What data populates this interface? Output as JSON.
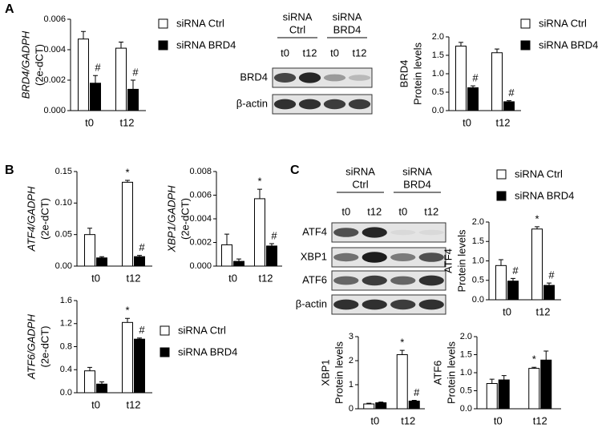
{
  "panel_labels": [
    "A",
    "B",
    "C"
  ],
  "blots": [
    {
      "groups": [
        [
          "siRNA",
          "Ctrl"
        ],
        [
          "siRNA",
          "BRD4"
        ]
      ],
      "lanes": [
        "t0",
        "t12",
        "t0",
        "t12"
      ],
      "rows": [
        "BRD4",
        "β-actin"
      ]
    },
    {
      "groups": [
        [
          "siRNA",
          "Ctrl"
        ],
        [
          "siRNA",
          "BRD4"
        ]
      ],
      "lanes": [
        "t0",
        "t12",
        "t0",
        "t12"
      ],
      "rows": [
        "ATF4",
        "XBP1",
        "ATF6",
        "β-actin"
      ]
    }
  ],
  "chart_data": [
    {
      "type": "bar",
      "ylabel": [
        "BRD4/GADPH",
        "(2e-dCT)"
      ],
      "ylabel_italic": true,
      "categories": [
        "t0",
        "t12"
      ],
      "ylim": [
        0,
        0.006
      ],
      "yticks": [
        {
          "value": 0,
          "label": "0.000"
        },
        {
          "value": 0.002,
          "label": "0.002"
        },
        {
          "value": 0.004,
          "label": "0.004"
        },
        {
          "value": 0.006,
          "label": "0.006"
        }
      ],
      "legend": true,
      "series": [
        {
          "name": "siRNA Ctrl",
          "color": "#ffffff",
          "values": [
            0.0047,
            0.0041
          ],
          "errors": [
            0.0005,
            0.0004
          ],
          "significance": [
            null,
            null
          ]
        },
        {
          "name": "siRNA BRD4",
          "color": "#000000",
          "values": [
            0.0018,
            0.0014
          ],
          "errors": [
            0.0005,
            0.0006
          ],
          "significance": [
            "#",
            "#"
          ]
        }
      ]
    },
    {
      "type": "bar",
      "ylabel": [
        "BRD4",
        "Protein levels"
      ],
      "ylabel_italic": false,
      "categories": [
        "t0",
        "t12"
      ],
      "ylim": [
        0,
        2
      ],
      "yticks": [
        {
          "value": 0,
          "label": "0.0"
        },
        {
          "value": 0.5,
          "label": "0.5"
        },
        {
          "value": 1,
          "label": "1.0"
        },
        {
          "value": 1.5,
          "label": "1.5"
        },
        {
          "value": 2,
          "label": "2.0"
        }
      ],
      "legend": true,
      "series": [
        {
          "name": "siRNA Ctrl",
          "color": "#ffffff",
          "values": [
            1.75,
            1.57
          ],
          "errors": [
            0.1,
            0.1
          ],
          "significance": [
            null,
            null
          ]
        },
        {
          "name": "siRNA BRD4",
          "color": "#000000",
          "values": [
            0.62,
            0.24
          ],
          "errors": [
            0.05,
            0.03
          ],
          "significance": [
            "#",
            "#"
          ]
        }
      ]
    },
    {
      "type": "bar",
      "ylabel": [
        "ATF4/GADPH",
        "(2e-dCT)"
      ],
      "ylabel_italic": true,
      "categories": [
        "t0",
        "t12"
      ],
      "ylim": [
        0,
        0.15
      ],
      "yticks": [
        {
          "value": 0,
          "label": "0.00"
        },
        {
          "value": 0.05,
          "label": "0.05"
        },
        {
          "value": 0.1,
          "label": "0.10"
        },
        {
          "value": 0.15,
          "label": "0.15"
        }
      ],
      "legend": false,
      "series": [
        {
          "color": "#ffffff",
          "values": [
            0.05,
            0.133
          ],
          "errors": [
            0.01,
            0.003
          ],
          "significance": [
            null,
            "*"
          ]
        },
        {
          "color": "#000000",
          "values": [
            0.013,
            0.015
          ],
          "errors": [
            0.002,
            0.002
          ],
          "significance": [
            null,
            "#"
          ]
        }
      ]
    },
    {
      "type": "bar",
      "ylabel": [
        "XBP1/GADPH",
        "(2e-dCT)"
      ],
      "ylabel_italic": true,
      "categories": [
        "t0",
        "t12"
      ],
      "ylim": [
        0,
        0.008
      ],
      "yticks": [
        {
          "value": 0,
          "label": "0.000"
        },
        {
          "value": 0.002,
          "label": "0.002"
        },
        {
          "value": 0.004,
          "label": "0.004"
        },
        {
          "value": 0.006,
          "label": "0.006"
        },
        {
          "value": 0.008,
          "label": "0.008"
        }
      ],
      "legend": false,
      "series": [
        {
          "color": "#ffffff",
          "values": [
            0.0018,
            0.0057
          ],
          "errors": [
            0.0009,
            0.0008
          ],
          "significance": [
            null,
            "*"
          ]
        },
        {
          "color": "#000000",
          "values": [
            0.0004,
            0.0017
          ],
          "errors": [
            0.0002,
            0.0002
          ],
          "significance": [
            null,
            "#"
          ]
        }
      ]
    },
    {
      "type": "bar",
      "ylabel": [
        "ATF6/GADPH",
        "(2e-dCT)"
      ],
      "ylabel_italic": true,
      "categories": [
        "t0",
        "t12"
      ],
      "ylim": [
        0,
        1.6
      ],
      "yticks": [
        {
          "value": 0,
          "label": "0.0"
        },
        {
          "value": 0.4,
          "label": "0.4"
        },
        {
          "value": 0.8,
          "label": "0.8"
        },
        {
          "value": 1.2,
          "label": "1.2"
        },
        {
          "value": 1.6,
          "label": "1.6"
        }
      ],
      "legend": true,
      "series": [
        {
          "name": "siRNA Ctrl",
          "color": "#ffffff",
          "values": [
            0.38,
            1.22
          ],
          "errors": [
            0.06,
            0.07
          ],
          "significance": [
            null,
            "*"
          ]
        },
        {
          "name": "siRNA BRD4",
          "color": "#000000",
          "values": [
            0.15,
            0.93
          ],
          "errors": [
            0.04,
            0.02
          ],
          "significance": [
            null,
            "#"
          ]
        }
      ]
    },
    {
      "type": "bar",
      "ylabel": [
        "ATF4",
        "Protein levels"
      ],
      "ylabel_italic": false,
      "categories": [
        "t0",
        "t12"
      ],
      "ylim": [
        0,
        2
      ],
      "yticks": [
        {
          "value": 0,
          "label": "0.0"
        },
        {
          "value": 0.5,
          "label": "0.5"
        },
        {
          "value": 1,
          "label": "1.0"
        },
        {
          "value": 1.5,
          "label": "1.5"
        },
        {
          "value": 2,
          "label": "2.0"
        }
      ],
      "legend": true,
      "series": [
        {
          "name": "siRNA Ctrl",
          "color": "#ffffff",
          "values": [
            0.88,
            1.82
          ],
          "errors": [
            0.15,
            0.06
          ],
          "significance": [
            null,
            "*"
          ]
        },
        {
          "name": "siRNA BRD4",
          "color": "#000000",
          "values": [
            0.48,
            0.37
          ],
          "errors": [
            0.07,
            0.06
          ],
          "significance": [
            "#",
            "#"
          ]
        }
      ]
    },
    {
      "type": "bar",
      "ylabel": [
        "XBP1",
        "Protein levels"
      ],
      "ylabel_italic": false,
      "categories": [
        "t0",
        "t12"
      ],
      "ylim": [
        0,
        3
      ],
      "yticks": [
        0,
        1,
        2,
        3
      ],
      "legend": false,
      "series": [
        {
          "color": "#ffffff",
          "values": [
            0.2,
            2.25
          ],
          "errors": [
            0.03,
            0.18
          ],
          "significance": [
            null,
            "*"
          ]
        },
        {
          "color": "#000000",
          "values": [
            0.25,
            0.32
          ],
          "errors": [
            0.03,
            0.03
          ],
          "significance": [
            null,
            "#"
          ]
        }
      ]
    },
    {
      "type": "bar",
      "ylabel": [
        "ATF6",
        "Protein levels"
      ],
      "ylabel_italic": false,
      "categories": [
        "t0",
        "t12"
      ],
      "ylim": [
        0,
        2
      ],
      "yticks": [
        {
          "value": 0,
          "label": "0.0"
        },
        {
          "value": 0.5,
          "label": "0.5"
        },
        {
          "value": 1,
          "label": "1.0"
        },
        {
          "value": 1.5,
          "label": "1.5"
        },
        {
          "value": 2,
          "label": "2.0"
        }
      ],
      "legend": false,
      "series": [
        {
          "color": "#ffffff",
          "values": [
            0.7,
            1.12
          ],
          "errors": [
            0.12,
            0.03
          ],
          "significance": [
            null,
            "*"
          ]
        },
        {
          "color": "#000000",
          "values": [
            0.8,
            1.35
          ],
          "errors": [
            0.12,
            0.25
          ],
          "significance": [
            null,
            null
          ]
        }
      ]
    }
  ]
}
